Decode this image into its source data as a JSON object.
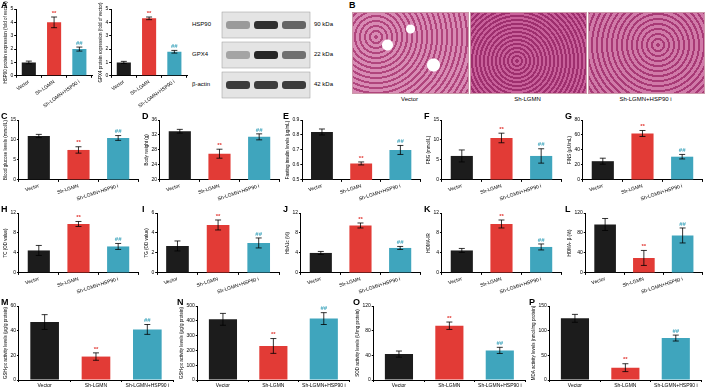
{
  "chart_data": [
    {
      "type": "bar",
      "panel": "A",
      "ylabel": "HSP90 protein expression (fold of vector)",
      "categories": [
        "Vector",
        "Sh-LGMN",
        "Sh-LGMN+HSP90 i"
      ],
      "values": [
        1.0,
        4.0,
        2.0
      ],
      "errors": [
        0.1,
        0.4,
        0.15
      ],
      "annotations": [
        null,
        "**",
        "##"
      ],
      "colors": [
        "#1c1c1c",
        "#e23b36",
        "#3fa5bd"
      ],
      "ylim": [
        0,
        5
      ],
      "yticks": [
        0,
        1,
        2,
        3,
        4,
        5
      ],
      "grid": false
    },
    {
      "type": "bar",
      "ylabel": "GPX4 protein expression (fold of vector)",
      "categories": [
        "Vector",
        "Sh-LGMN",
        "Sh-LGMN+HSP90 i"
      ],
      "values": [
        1.0,
        4.3,
        1.8
      ],
      "errors": [
        0.08,
        0.1,
        0.1
      ],
      "annotations": [
        null,
        "**",
        "##"
      ],
      "colors": [
        "#1c1c1c",
        "#e23b36",
        "#3fa5bd"
      ],
      "ylim": [
        0,
        5
      ],
      "yticks": [
        0,
        1,
        2,
        3,
        4,
        5
      ],
      "grid": false
    },
    {
      "type": "bar",
      "panel": "C",
      "ylabel": "Blood glucose levels (mmol/L)",
      "categories": [
        "Vector",
        "Sh-LGMN",
        "Sh-LGMN+HSP90 i"
      ],
      "values": [
        11,
        7.5,
        10.5
      ],
      "errors": [
        0.4,
        0.8,
        0.6
      ],
      "annotations": [
        null,
        "**",
        "##"
      ],
      "colors": [
        "#1c1c1c",
        "#e23b36",
        "#3fa5bd"
      ],
      "ylim": [
        0,
        15
      ],
      "yticks": [
        0,
        5,
        10,
        15
      ],
      "grid": false
    },
    {
      "type": "bar",
      "panel": "D",
      "ylabel": "Body weight (g)",
      "categories": [
        "Vector",
        "Sh-LGMN",
        "Sh-LGMN+HSP90 i"
      ],
      "values": [
        33,
        27,
        31.5
      ],
      "errors": [
        0.5,
        1.2,
        0.8
      ],
      "annotations": [
        null,
        "**",
        "##"
      ],
      "colors": [
        "#1c1c1c",
        "#e23b36",
        "#3fa5bd"
      ],
      "ylim": [
        20,
        36
      ],
      "yticks": [
        20,
        24,
        28,
        32,
        36
      ],
      "grid": false
    },
    {
      "type": "bar",
      "panel": "E",
      "ylabel": "Fasting insulin levels (μg/mL)",
      "categories": [
        "Vector",
        "Sh-LGMN",
        "Sh-LGMN+HSP90 i"
      ],
      "values": [
        0.82,
        0.61,
        0.7
      ],
      "errors": [
        0.02,
        0.01,
        0.03
      ],
      "annotations": [
        null,
        "**",
        "##"
      ],
      "colors": [
        "#1c1c1c",
        "#e23b36",
        "#3fa5bd"
      ],
      "ylim": [
        0.5,
        0.9
      ],
      "yticks": [
        0.5,
        0.6,
        0.7,
        0.8,
        0.9
      ],
      "grid": false
    },
    {
      "type": "bar",
      "panel": "F",
      "ylabel": "FBG (mmol/L)",
      "categories": [
        "Vector",
        "Sh-LGMN",
        "Sh-LGMN+HSP90 i"
      ],
      "values": [
        6,
        10.5,
        6
      ],
      "errors": [
        1.5,
        1.2,
        1.8
      ],
      "annotations": [
        null,
        "**",
        "##"
      ],
      "colors": [
        "#1c1c1c",
        "#e23b36",
        "#3fa5bd"
      ],
      "ylim": [
        0,
        15
      ],
      "yticks": [
        0,
        5,
        10,
        15
      ],
      "grid": false
    },
    {
      "type": "bar",
      "panel": "G",
      "ylabel": "FINS (μU/mL)",
      "categories": [
        "Vector",
        "Sh-LGMN",
        "Sh-LGMN+HSP90 i"
      ],
      "values": [
        25,
        62,
        31
      ],
      "errors": [
        4,
        4,
        3
      ],
      "annotations": [
        null,
        "**",
        "##"
      ],
      "colors": [
        "#1c1c1c",
        "#e23b36",
        "#3fa5bd"
      ],
      "ylim": [
        0,
        80
      ],
      "yticks": [
        0,
        20,
        40,
        60,
        80
      ],
      "grid": false
    },
    {
      "type": "bar",
      "panel": "H",
      "ylabel": "TC (OD value)",
      "categories": [
        "Vector",
        "Sh-LGMN",
        "Sh-LGMN+HSP90 i"
      ],
      "values": [
        4.5,
        9.8,
        5.3
      ],
      "errors": [
        1.0,
        0.5,
        0.6
      ],
      "annotations": [
        null,
        "**",
        "##"
      ],
      "colors": [
        "#1c1c1c",
        "#e23b36",
        "#3fa5bd"
      ],
      "ylim": [
        0,
        12
      ],
      "yticks": [
        0,
        4,
        8,
        12
      ],
      "grid": false
    },
    {
      "type": "bar",
      "panel": "I",
      "ylabel": "TG (OD value)",
      "categories": [
        "Vector",
        "Sh-LGMN",
        "Sh-LGMN+HSP90 i"
      ],
      "values": [
        2.7,
        4.8,
        3.0
      ],
      "errors": [
        0.5,
        0.5,
        0.5
      ],
      "annotations": [
        null,
        "**",
        "##"
      ],
      "colors": [
        "#1c1c1c",
        "#e23b36",
        "#3fa5bd"
      ],
      "ylim": [
        0,
        6
      ],
      "yticks": [
        0,
        2,
        4,
        6
      ],
      "grid": false
    },
    {
      "type": "bar",
      "panel": "J",
      "ylabel": "HbA1c (%)",
      "categories": [
        "Vector",
        "Sh-LGMN",
        "Sh-LGMN+HSP90 i"
      ],
      "values": [
        4,
        9.5,
        5
      ],
      "errors": [
        0.3,
        0.5,
        0.3
      ],
      "annotations": [
        null,
        "**",
        "##"
      ],
      "colors": [
        "#1c1c1c",
        "#e23b36",
        "#3fa5bd"
      ],
      "ylim": [
        0,
        12
      ],
      "yticks": [
        0,
        4,
        8,
        12
      ],
      "grid": false
    },
    {
      "type": "bar",
      "panel": "K",
      "ylabel": "HOMA-IR",
      "categories": [
        "Vector",
        "Sh-LGMN",
        "Sh-LGMN+HSP90 i"
      ],
      "values": [
        4.5,
        9.8,
        5.2
      ],
      "errors": [
        0.4,
        0.8,
        0.6
      ],
      "annotations": [
        null,
        "**",
        "##"
      ],
      "colors": [
        "#1c1c1c",
        "#e23b36",
        "#3fa5bd"
      ],
      "ylim": [
        0,
        12
      ],
      "yticks": [
        0,
        4,
        8,
        12
      ],
      "grid": false
    },
    {
      "type": "bar",
      "panel": "L",
      "ylabel": "HOMA- β (%)",
      "categories": [
        "Vector",
        "Sh-LGMN",
        "Sh-LGMN+HSP90 i"
      ],
      "values": [
        97,
        30,
        75
      ],
      "errors": [
        12,
        15,
        15
      ],
      "annotations": [
        null,
        "**",
        "##"
      ],
      "colors": [
        "#1c1c1c",
        "#e23b36",
        "#3fa5bd"
      ],
      "ylim": [
        0,
        120
      ],
      "yticks": [
        0,
        40,
        80,
        120
      ],
      "grid": false
    },
    {
      "type": "bar",
      "panel": "M",
      "ylabel": "GSH-px activity levels (μg/g protein)",
      "categories": [
        "Vector",
        "Sh-LGMN",
        "Sh-LGMN+HSP90 i"
      ],
      "values": [
        47,
        19,
        41
      ],
      "errors": [
        6,
        3,
        4
      ],
      "annotations": [
        null,
        "**",
        "##"
      ],
      "colors": [
        "#1c1c1c",
        "#e23b36",
        "#3fa5bd"
      ],
      "ylim": [
        0,
        60
      ],
      "yticks": [
        0,
        20,
        40,
        60
      ],
      "grid": false
    },
    {
      "type": "bar",
      "panel": "N",
      "ylabel": "GSH-px activity levels (μg/g protein)",
      "categories": [
        "Vector",
        "Sh-LGMN",
        "Sh-LGMN+HSP90 i"
      ],
      "values": [
        410,
        230,
        415
      ],
      "errors": [
        40,
        50,
        40
      ],
      "annotations": [
        null,
        "**",
        "##"
      ],
      "colors": [
        "#1c1c1c",
        "#e23b36",
        "#3fa5bd"
      ],
      "ylim": [
        0,
        500
      ],
      "yticks": [
        0,
        100,
        200,
        300,
        400,
        500
      ],
      "grid": false
    },
    {
      "type": "bar",
      "panel": "O",
      "ylabel": "SOD activity levels (U/mg protein)",
      "categories": [
        "Vector",
        "Sh-LGMN",
        "Sh-LGMN+HSP90 i"
      ],
      "values": [
        42,
        88,
        48
      ],
      "errors": [
        5,
        6,
        5
      ],
      "annotations": [
        null,
        "**",
        "##"
      ],
      "colors": [
        "#1c1c1c",
        "#e23b36",
        "#3fa5bd"
      ],
      "ylim": [
        0,
        120
      ],
      "yticks": [
        0,
        40,
        80,
        120
      ],
      "grid": false
    },
    {
      "type": "bar",
      "panel": "P",
      "ylabel": "MDA activity levels (nmol/mg protein)",
      "categories": [
        "Vector",
        "Sh-LGMN",
        "Sh-LGMN+HSP90 i"
      ],
      "values": [
        125,
        25,
        85
      ],
      "errors": [
        8,
        8,
        6
      ],
      "annotations": [
        null,
        "**",
        "##"
      ],
      "colors": [
        "#1c1c1c",
        "#e23b36",
        "#3fa5bd"
      ],
      "ylim": [
        0,
        150
      ],
      "yticks": [
        0,
        50,
        100,
        150
      ],
      "grid": false
    }
  ],
  "blot": {
    "bands": [
      {
        "name": "HSP90",
        "size": "90 kDa"
      },
      {
        "name": "GPX4",
        "size": "22 kDa"
      },
      {
        "name": "β-actin",
        "size": "42 kDa"
      }
    ]
  },
  "histology": {
    "panel": "B",
    "labels": [
      "Vector",
      "Sh-LGMN",
      "Sh-LGMN+HSP90 i"
    ]
  }
}
